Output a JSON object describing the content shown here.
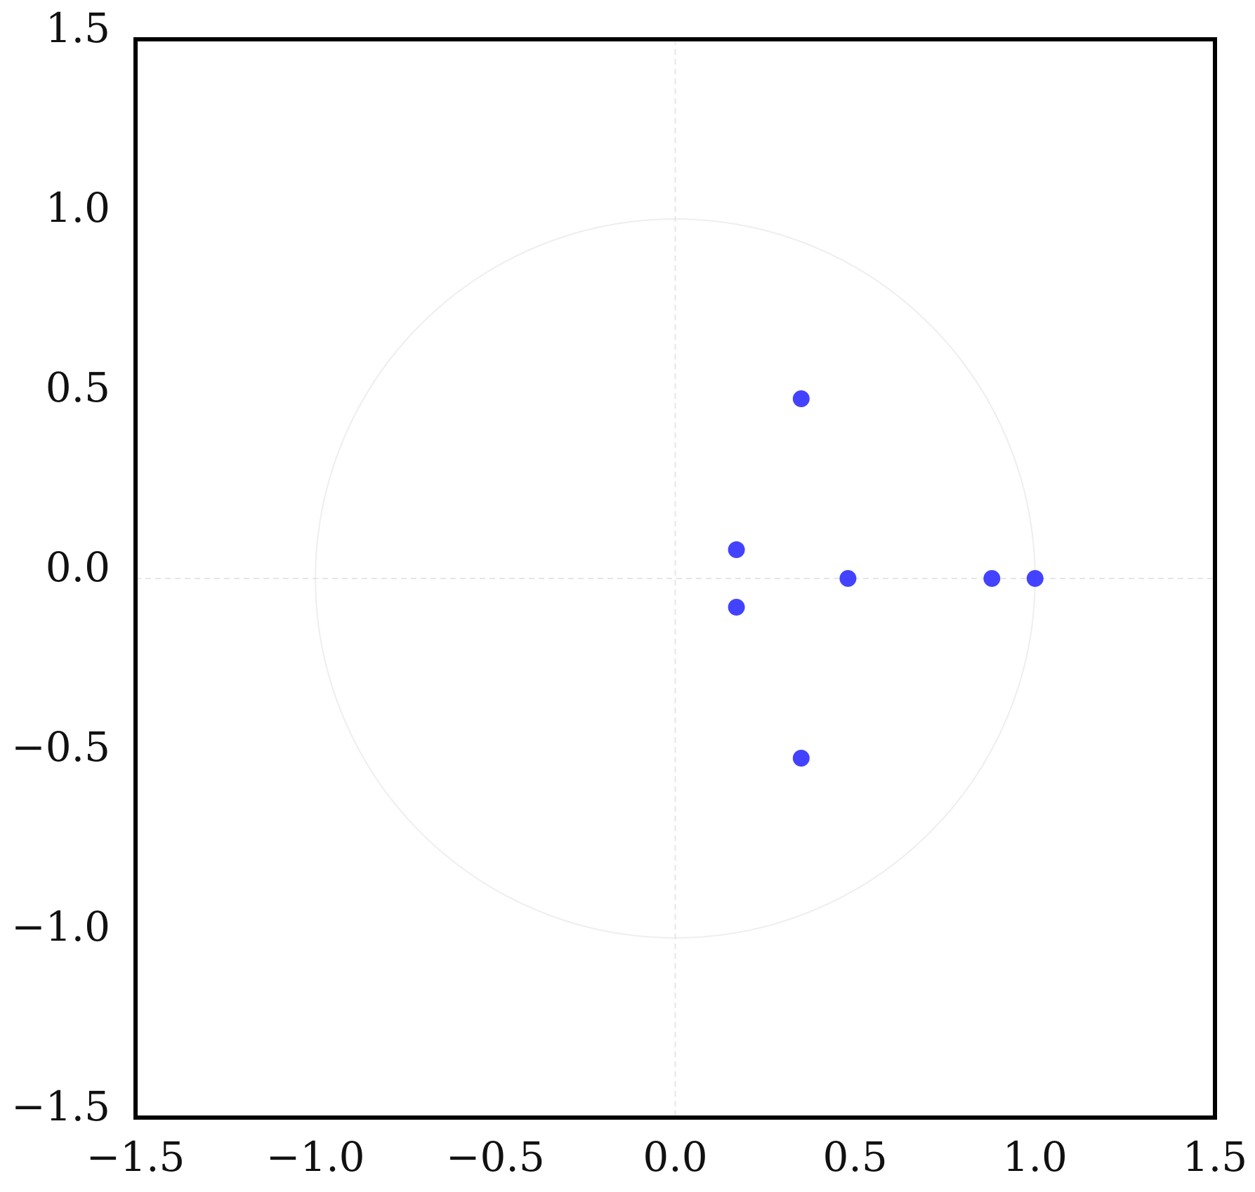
{
  "chart_data": {
    "type": "scatter",
    "title": "",
    "xlabel": "",
    "ylabel": "",
    "xlim": [
      -1.5,
      1.5
    ],
    "ylim": [
      -1.5,
      1.5
    ],
    "xticks": [
      "−1.5",
      "−1.0",
      "−0.5",
      "0.0",
      "0.5",
      "1.0",
      "1.5"
    ],
    "yticks": [
      "1.5",
      "1.0",
      "0.5",
      "0.0",
      "−0.5",
      "−1.0",
      "−1.5"
    ],
    "xtick_values": [
      -1.5,
      -1.0,
      -0.5,
      0.0,
      0.5,
      1.0,
      1.5
    ],
    "ytick_values": [
      1.5,
      1.0,
      0.5,
      0.0,
      -0.5,
      -1.0,
      -1.5
    ],
    "grid": false,
    "reference_circle": {
      "center": [
        0,
        0
      ],
      "radius": 1.0,
      "color": "#eeeeee"
    },
    "reference_axes": {
      "style": "dashed",
      "color": "#e6e6e6"
    },
    "series": [
      {
        "color": "#3333ff",
        "points": [
          {
            "x": 0.35,
            "y": 0.5
          },
          {
            "x": 0.35,
            "y": -0.5
          },
          {
            "x": 0.17,
            "y": 0.08
          },
          {
            "x": 0.17,
            "y": -0.08
          },
          {
            "x": 0.48,
            "y": 0.0
          },
          {
            "x": 0.88,
            "y": 0.0
          },
          {
            "x": 1.0,
            "y": 0.0
          }
        ]
      }
    ]
  }
}
